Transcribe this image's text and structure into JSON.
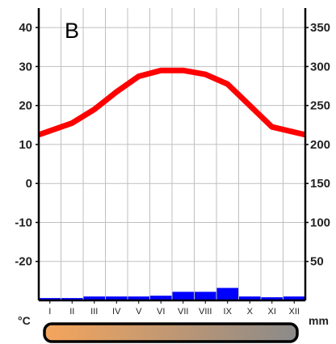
{
  "panel_label": "B",
  "colors": {
    "temperature": "#ff0000",
    "precipitation": "#0000ff",
    "grid": "#bfbfbf",
    "axis": "#000000",
    "bar_gradient_start": "#f5a55c",
    "bar_gradient_end": "#8a8a8a"
  },
  "chart_data": {
    "type": "bar+line",
    "title": "",
    "xlabel": "",
    "categories": [
      "I",
      "II",
      "III",
      "IV",
      "V",
      "VI",
      "VII",
      "VIII",
      "IX",
      "X",
      "XI",
      "XII"
    ],
    "left_axis": {
      "unit": "°C",
      "ticks": [
        "40",
        "30",
        "20",
        "10",
        "0",
        "-10",
        "-20"
      ],
      "ylim": [
        -30,
        45
      ]
    },
    "right_axis": {
      "unit": "mm",
      "ticks": [
        "350",
        "300",
        "250",
        "200",
        "150",
        "100",
        "50"
      ],
      "ylim": [
        0,
        375
      ]
    },
    "grid": true,
    "series": [
      {
        "kind": "line",
        "axis": "left",
        "values": [
          12.5,
          15.5,
          19,
          23.5,
          27.5,
          29,
          29,
          28,
          25.5,
          20,
          14.5,
          12.5
        ]
      },
      {
        "kind": "bar",
        "axis": "right",
        "values": [
          3,
          3,
          5,
          5,
          5,
          6,
          11,
          11,
          16,
          5,
          4,
          5
        ]
      }
    ]
  }
}
